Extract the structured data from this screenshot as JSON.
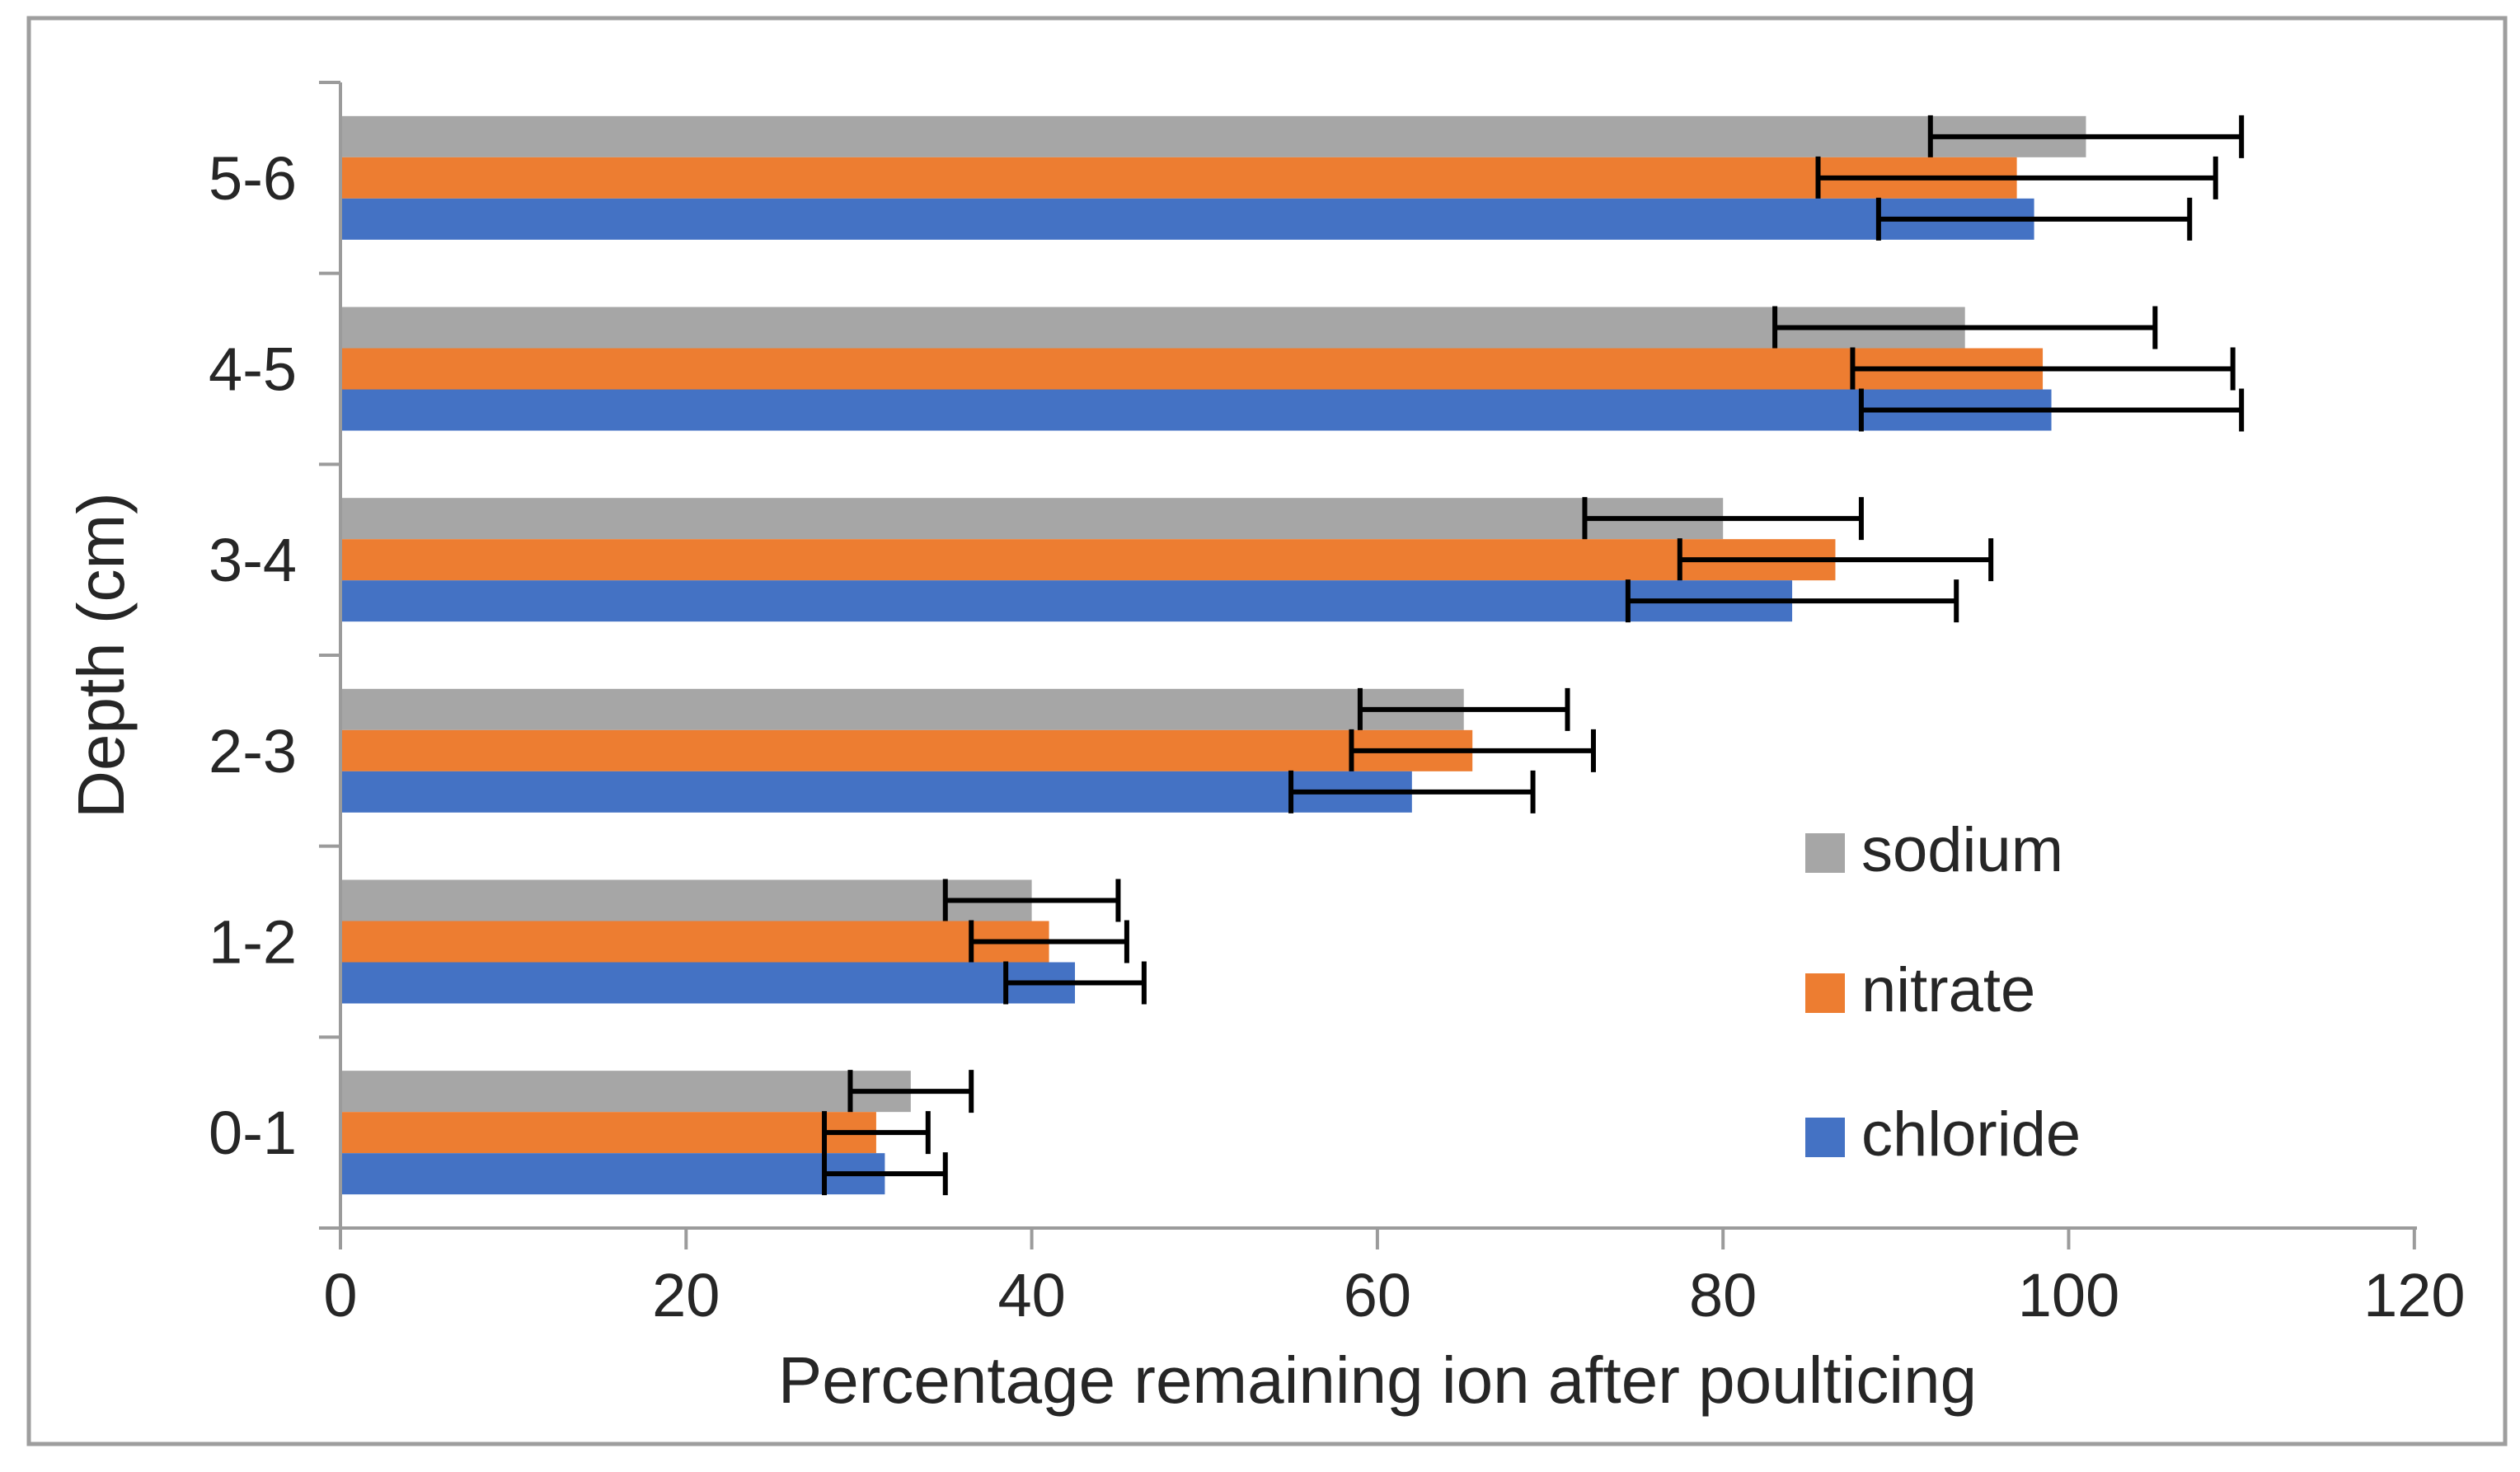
{
  "chart_data": {
    "type": "bar",
    "orientation": "horizontal",
    "title": "",
    "xlabel": "Percentage remaining ion after poulticing",
    "ylabel": "Depth (cm)",
    "categories": [
      "5-6",
      "4-5",
      "3-4",
      "2-3",
      "1-2",
      "0-1"
    ],
    "x_ticks": [
      0,
      20,
      40,
      60,
      80,
      100,
      120
    ],
    "xlim": [
      0,
      120
    ],
    "grid": false,
    "error_bars": true,
    "legend_position": "right-middle",
    "series": [
      {
        "name": "sodium",
        "color": "#a6a6a6",
        "values": [
          101,
          94,
          80,
          65,
          40,
          33
        ],
        "errors": [
          9,
          11,
          8,
          6,
          5,
          3.5
        ]
      },
      {
        "name": "nitrate",
        "color": "#ed7d31",
        "values": [
          97,
          98.5,
          86.5,
          65.5,
          41,
          31
        ],
        "errors": [
          11.5,
          11,
          9,
          7,
          4.5,
          3
        ]
      },
      {
        "name": "chloride",
        "color": "#4472c4",
        "values": [
          98,
          99,
          84,
          62,
          42.5,
          31.5
        ],
        "errors": [
          9,
          11,
          9.5,
          7,
          4,
          3.5
        ]
      }
    ]
  },
  "frame": {
    "background": "#ffffff",
    "border_color": "#9e9e9e"
  },
  "axis": {
    "line_color": "#9b9b9b",
    "label_color": "#262626",
    "error_bar_color": "#000000"
  }
}
